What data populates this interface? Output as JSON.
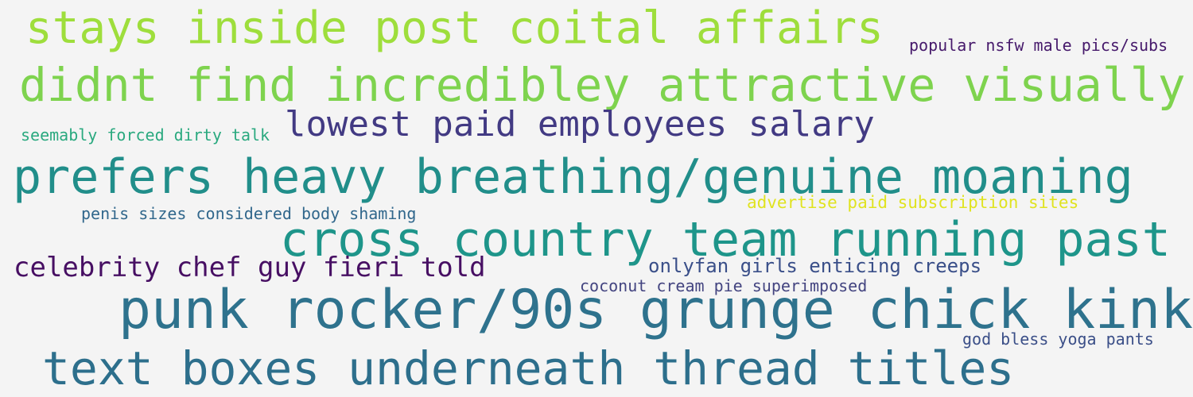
{
  "words": [
    {
      "text": "stays inside post coital affairs",
      "color": "#9ede3c"
    },
    {
      "text": "popular nsfw male pics/subs",
      "color": "#46196b"
    },
    {
      "text": "didnt find incredibley attractive visually",
      "color": "#7ed34e"
    },
    {
      "text": "seemably forced dirty talk",
      "color": "#2aa97f"
    },
    {
      "text": "lowest paid employees salary",
      "color": "#423a83"
    },
    {
      "text": "prefers heavy breathing/genuine moaning",
      "color": "#218e8a"
    },
    {
      "text": "advertise paid subscription sites",
      "color": "#e0e320"
    },
    {
      "text": "penis sizes considered body shaming",
      "color": "#31678c"
    },
    {
      "text": "cross country team running past",
      "color": "#1e958a"
    },
    {
      "text": "celebrity chef guy fieri told",
      "color": "#470f63"
    },
    {
      "text": "onlyfan girls enticing creeps",
      "color": "#3a4f89"
    },
    {
      "text": "coconut cream pie superimposed",
      "color": "#434480"
    },
    {
      "text": "punk rocker/90s grunge chick kink",
      "color": "#2e728d"
    },
    {
      "text": "god bless yoga pants",
      "color": "#3b4f88"
    },
    {
      "text": "text boxes underneath thread titles",
      "color": "#2d6f8c"
    }
  ]
}
